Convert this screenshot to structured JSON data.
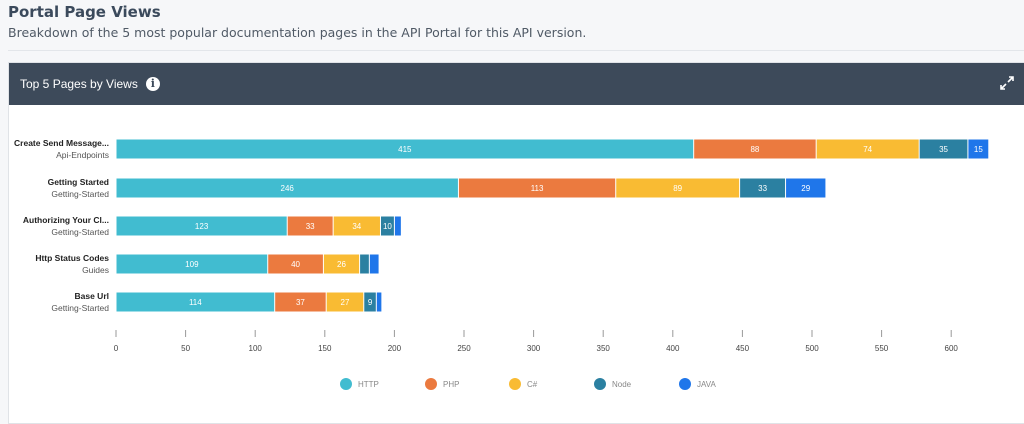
{
  "page": {
    "title": "Portal Page Views",
    "subtitle": "Breakdown of the 5 most popular documentation pages in the API Portal for this API version."
  },
  "card": {
    "title": "Top 5 Pages by Views",
    "info_icon": "info-circle-icon",
    "expand_icon": "expand-arrows-icon"
  },
  "chart_data": {
    "type": "bar",
    "orientation": "horizontal",
    "stacked": true,
    "title": "Top 5 Pages by Views",
    "categories": [
      {
        "name": "Create Send Message...",
        "group": "Api-Endpoints"
      },
      {
        "name": "Getting Started",
        "group": "Getting-Started"
      },
      {
        "name": "Authorizing Your Cl...",
        "group": "Getting-Started"
      },
      {
        "name": "Http Status Codes",
        "group": "Guides"
      },
      {
        "name": "Base Url",
        "group": "Getting-Started"
      }
    ],
    "series": [
      {
        "name": "HTTP",
        "color": "#41bcd0",
        "values": [
          415,
          246,
          123,
          109,
          114
        ]
      },
      {
        "name": "PHP",
        "color": "#eb7a3f",
        "values": [
          88,
          113,
          33,
          40,
          37
        ]
      },
      {
        "name": "C#",
        "color": "#f9bb33",
        "values": [
          74,
          89,
          34,
          26,
          27
        ]
      },
      {
        "name": "Node",
        "color": "#2b80a1",
        "values": [
          35,
          33,
          10,
          7,
          9
        ]
      },
      {
        "name": "JAVA",
        "color": "#1f76ea",
        "values": [
          15,
          29,
          5,
          7,
          4
        ]
      }
    ],
    "xlim": [
      0,
      625
    ],
    "xticks": [
      0,
      50,
      100,
      150,
      200,
      250,
      300,
      350,
      400,
      450,
      500,
      550,
      600
    ],
    "grid": false,
    "legend": "bottom"
  }
}
